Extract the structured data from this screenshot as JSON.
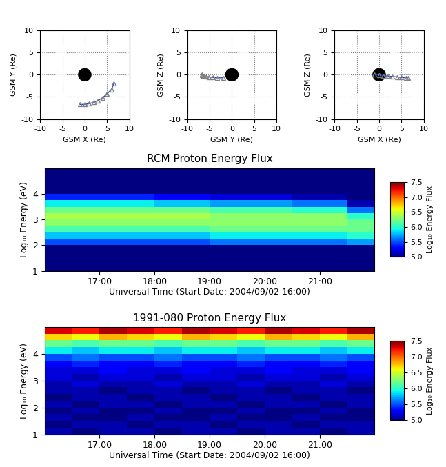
{
  "chart_data": [
    {
      "type": "line",
      "xlabel": "GSM X (Re)",
      "ylabel": "GSM Y (Re)",
      "x": [
        6.5,
        6.0,
        5.0,
        4.0,
        3.0,
        2.0,
        1.0,
        0.0,
        -1.0
      ],
      "values": [
        -2.0,
        -3.3,
        -4.3,
        -5.2,
        -5.8,
        -6.2,
        -6.5,
        -6.7,
        -6.7
      ],
      "color": "#1f3fd0",
      "marker": "triangle",
      "grid": true,
      "xlim": [
        -10,
        10
      ],
      "ylim": [
        -10,
        10
      ],
      "xticks": [
        -10,
        -5,
        0,
        5,
        10
      ],
      "yticks": [
        -10,
        -5,
        0,
        5,
        10
      ]
    },
    {
      "type": "line",
      "xlabel": "GSM Y (Re)",
      "ylabel": "GSM Z (Re)",
      "x": [
        -2.0,
        -3.3,
        -4.3,
        -5.2,
        -5.8,
        -6.2,
        -6.5,
        -6.7,
        -6.7
      ],
      "values": [
        -0.7,
        -0.7,
        -0.6,
        -0.5,
        -0.4,
        -0.3,
        -0.2,
        -0.1,
        0.1
      ],
      "color": "#1f3fd0",
      "marker": "triangle",
      "grid": true,
      "xlim": [
        -10,
        10
      ],
      "ylim": [
        -10,
        10
      ],
      "xticks": [
        -10,
        -5,
        0,
        5,
        10
      ],
      "yticks": [
        -10,
        -5,
        0,
        5,
        10
      ]
    },
    {
      "type": "line",
      "xlabel": "GSM X (Re)",
      "ylabel": "GSM Z (Re)",
      "x": [
        6.5,
        6.0,
        5.0,
        4.0,
        3.0,
        2.0,
        1.0,
        0.0,
        -1.0
      ],
      "values": [
        -0.7,
        -0.7,
        -0.6,
        -0.5,
        -0.4,
        -0.3,
        -0.2,
        -0.1,
        0.1
      ],
      "color": "#1f3fd0",
      "marker": "triangle",
      "grid": true,
      "xlim": [
        -10,
        10
      ],
      "ylim": [
        -10,
        10
      ],
      "xticks": [
        -10,
        -5,
        0,
        5,
        10
      ],
      "yticks": [
        -10,
        -5,
        0,
        5,
        10
      ]
    },
    {
      "type": "heatmap",
      "title": "RCM Proton Energy Flux",
      "xlabel": "Universal Time (Start Date: 2004/09/02 16:00)",
      "ylabel": "Log₁₀ Energy (eV)",
      "x": [
        16.0,
        16.5,
        17.0,
        17.5,
        18.0,
        18.5,
        19.0,
        19.5,
        20.0,
        20.5,
        21.0,
        21.5,
        22.0
      ],
      "y": [
        1.0,
        1.25,
        1.5,
        1.75,
        2.0,
        2.25,
        2.5,
        2.75,
        3.0,
        3.25,
        3.5,
        3.75,
        4.0,
        4.25,
        4.5,
        4.75,
        5.0
      ],
      "cells": [
        [
          5.0,
          5.0,
          5.0,
          5.0,
          5.5,
          5.8,
          6.1,
          6.3,
          6.4,
          6.2,
          5.9,
          5.4,
          5.0,
          5.0,
          5.0,
          5.0
        ],
        [
          5.0,
          5.0,
          5.0,
          5.0,
          5.5,
          5.8,
          6.1,
          6.3,
          6.4,
          6.2,
          5.9,
          5.4,
          5.0,
          5.0,
          5.0,
          5.0
        ],
        [
          5.0,
          5.0,
          5.0,
          5.0,
          5.5,
          5.8,
          6.1,
          6.3,
          6.4,
          6.2,
          5.9,
          5.4,
          5.0,
          5.0,
          5.0,
          5.0
        ],
        [
          5.0,
          5.0,
          5.0,
          5.0,
          5.5,
          5.8,
          6.1,
          6.3,
          6.4,
          6.2,
          5.9,
          5.4,
          5.0,
          5.0,
          5.0,
          5.0
        ],
        [
          5.0,
          5.0,
          5.0,
          5.0,
          5.5,
          5.8,
          6.1,
          6.3,
          6.4,
          6.2,
          5.8,
          5.3,
          5.0,
          5.0,
          5.0,
          5.0
        ],
        [
          5.0,
          5.0,
          5.0,
          5.0,
          5.5,
          5.8,
          6.1,
          6.3,
          6.4,
          6.2,
          5.8,
          5.3,
          5.0,
          5.0,
          5.0,
          5.0
        ],
        [
          5.0,
          5.0,
          5.0,
          5.0,
          5.6,
          5.9,
          6.2,
          6.3,
          6.3,
          6.1,
          5.7,
          5.2,
          5.0,
          5.0,
          5.0,
          5.0
        ],
        [
          5.0,
          5.0,
          5.0,
          5.0,
          5.6,
          5.9,
          6.2,
          6.3,
          6.3,
          6.1,
          5.7,
          5.2,
          5.0,
          5.0,
          5.0,
          5.0
        ],
        [
          5.0,
          5.0,
          5.0,
          5.0,
          5.6,
          5.9,
          6.2,
          6.3,
          6.3,
          6.1,
          5.7,
          5.2,
          5.0,
          5.0,
          5.0,
          5.0
        ],
        [
          5.0,
          5.0,
          5.0,
          5.0,
          5.6,
          5.9,
          6.2,
          6.3,
          6.3,
          6.0,
          5.6,
          5.1,
          5.0,
          5.0,
          5.0,
          5.0
        ],
        [
          5.0,
          5.0,
          5.0,
          5.0,
          5.6,
          5.9,
          6.2,
          6.3,
          6.3,
          6.0,
          5.6,
          5.1,
          5.0,
          5.0,
          5.0,
          5.0
        ],
        [
          5.0,
          5.0,
          5.0,
          5.0,
          5.7,
          6.0,
          6.2,
          6.2,
          6.0,
          5.6,
          5.1,
          5.0,
          5.0,
          5.0,
          5.0,
          5.0
        ]
      ],
      "xlim": [
        16.0,
        22.0
      ],
      "ylim": [
        1.0,
        5.0
      ],
      "xticks": [
        {
          "value": 17,
          "label": "17:00"
        },
        {
          "value": 18,
          "label": "18:00"
        },
        {
          "value": 19,
          "label": "19:00"
        },
        {
          "value": 20,
          "label": "20:00"
        },
        {
          "value": 21,
          "label": "21:00"
        }
      ],
      "yticks": [
        1,
        2,
        3,
        4
      ],
      "colorbar_label": "Log₁₀ Energy Flux",
      "colorbar_range": [
        5.0,
        7.5
      ],
      "colorbar_ticks": [
        5.0,
        5.5,
        6.0,
        6.5,
        7.0,
        7.5
      ]
    },
    {
      "type": "heatmap",
      "title": "1991-080 Proton Energy Flux",
      "xlabel": "Universal Time (Start Date: 2004/09/02 16:00)",
      "ylabel": "Log₁₀ Energy (eV)",
      "x": [
        16.0,
        16.5,
        17.0,
        17.5,
        18.0,
        18.5,
        19.0,
        19.5,
        20.0,
        20.5,
        21.0,
        21.5,
        22.0
      ],
      "y": [
        1.0,
        1.25,
        1.5,
        1.75,
        2.0,
        2.25,
        2.5,
        2.75,
        3.0,
        3.25,
        3.5,
        3.75,
        4.0,
        4.25,
        4.5,
        4.75,
        5.0
      ],
      "cells": [
        [
          5.1,
          5.0,
          5.1,
          5.0,
          5.1,
          5.0,
          5.1,
          5.1,
          5.2,
          5.2,
          5.3,
          5.5,
          5.9,
          6.2,
          6.7,
          7.3
        ],
        [
          5.0,
          5.1,
          5.0,
          5.1,
          5.0,
          5.1,
          5.1,
          5.2,
          5.1,
          5.2,
          5.4,
          5.6,
          5.8,
          6.1,
          6.6,
          7.2
        ],
        [
          5.1,
          5.1,
          5.0,
          5.0,
          5.1,
          5.1,
          5.0,
          5.1,
          5.2,
          5.3,
          5.3,
          5.5,
          5.9,
          6.2,
          6.8,
          7.4
        ],
        [
          5.1,
          5.0,
          5.1,
          5.0,
          5.1,
          5.0,
          5.1,
          5.1,
          5.2,
          5.2,
          5.3,
          5.5,
          5.9,
          6.2,
          6.7,
          7.3
        ],
        [
          5.0,
          5.1,
          5.0,
          5.1,
          5.0,
          5.1,
          5.1,
          5.2,
          5.1,
          5.2,
          5.4,
          5.6,
          5.8,
          6.1,
          6.6,
          7.2
        ],
        [
          5.1,
          5.1,
          5.0,
          5.0,
          5.1,
          5.1,
          5.0,
          5.1,
          5.2,
          5.3,
          5.3,
          5.5,
          5.9,
          6.2,
          6.8,
          7.4
        ],
        [
          5.1,
          5.0,
          5.1,
          5.0,
          5.1,
          5.0,
          5.1,
          5.1,
          5.2,
          5.2,
          5.3,
          5.5,
          5.9,
          6.2,
          6.7,
          7.3
        ],
        [
          5.0,
          5.1,
          5.0,
          5.1,
          5.0,
          5.1,
          5.1,
          5.2,
          5.1,
          5.2,
          5.4,
          5.6,
          5.8,
          6.1,
          6.6,
          7.2
        ],
        [
          5.1,
          5.1,
          5.0,
          5.0,
          5.1,
          5.1,
          5.0,
          5.1,
          5.2,
          5.3,
          5.3,
          5.5,
          5.9,
          6.2,
          6.8,
          7.4
        ],
        [
          5.1,
          5.0,
          5.1,
          5.0,
          5.1,
          5.0,
          5.1,
          5.1,
          5.2,
          5.2,
          5.3,
          5.5,
          5.9,
          6.2,
          6.7,
          7.3
        ],
        [
          5.0,
          5.1,
          5.0,
          5.1,
          5.0,
          5.1,
          5.1,
          5.2,
          5.1,
          5.2,
          5.4,
          5.6,
          5.8,
          6.1,
          6.6,
          7.2
        ],
        [
          5.1,
          5.1,
          5.0,
          5.0,
          5.1,
          5.1,
          5.0,
          5.1,
          5.2,
          5.3,
          5.3,
          5.5,
          5.9,
          6.2,
          6.8,
          7.4
        ]
      ],
      "xlim": [
        16.0,
        22.0
      ],
      "ylim": [
        1.0,
        5.0
      ],
      "xticks": [
        {
          "value": 17,
          "label": "17:00"
        },
        {
          "value": 18,
          "label": "18:00"
        },
        {
          "value": 19,
          "label": "19:00"
        },
        {
          "value": 20,
          "label": "20:00"
        },
        {
          "value": 21,
          "label": "21:00"
        }
      ],
      "yticks": [
        1,
        2,
        3,
        4
      ],
      "colorbar_label": "Log₁₀ Energy Flux",
      "colorbar_range": [
        5.0,
        7.5
      ],
      "colorbar_ticks": [
        5.0,
        5.5,
        6.0,
        6.5,
        7.0,
        7.5
      ]
    }
  ]
}
